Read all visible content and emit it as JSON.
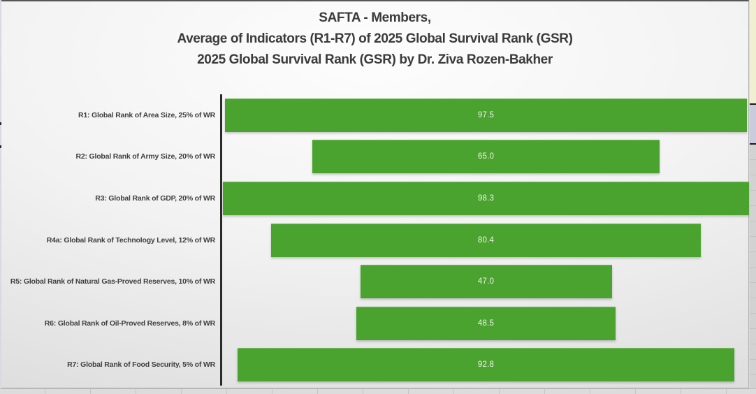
{
  "title": {
    "line1": "SAFTA - Members,",
    "line2": "Average of Indicators (R1-R7) of 2025 Global Survival Rank (GSR)",
    "line3": "2025 Global Survival Rank (GSR) by Dr. Ziva Rozen-Bakher"
  },
  "chart_data": {
    "type": "bar",
    "style": "horizontal funnel (bars centered on common vertical midline)",
    "categories": [
      "R1: Global Rank of Area Size, 25% of WR",
      "R2: Global Rank of Army Size, 20% of WR",
      "R3: Global Rank of GDP, 20% of WR",
      "R4a: Global Rank of Technology Level, 12% of WR",
      "R5: Global Rank of Natural Gas-Proved Reserves, 10% of WR",
      "R6: Global Rank of Oil-Proved Reserves, 8% of WR",
      "R7: Global Rank of Food Security, 5% of WR"
    ],
    "values": [
      97.5,
      65.0,
      98.3,
      80.4,
      47.0,
      48.5,
      92.8
    ],
    "value_labels": [
      "97.5",
      "65.0",
      "98.3",
      "80.4",
      "47.0",
      "48.5",
      "92.8"
    ],
    "xmax": 98.3,
    "title": "SAFTA - Members, Average of Indicators (R1-R7) of 2025 Global Survival Rank (GSR), 2025 Global Survival Rank (GSR) by Dr. Ziva Rozen-Bakher",
    "xlabel": "",
    "ylabel": "",
    "grid": false,
    "legend_position": "none",
    "bar_color": "#4ba32f",
    "value_text_color": "#eef3e9",
    "axis_color": "#2b2b2b",
    "label_text_color": "#3f3f3f",
    "title_text_color": "#3b3b3b"
  }
}
